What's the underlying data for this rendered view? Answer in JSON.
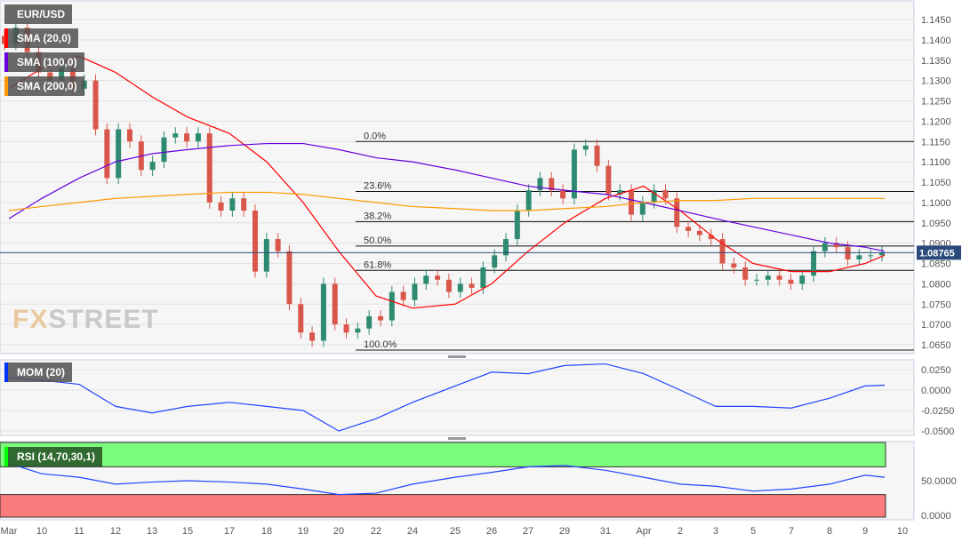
{
  "legend": [
    {
      "label": "EUR/USD",
      "color": "#555555"
    },
    {
      "label": "SMA (20,0)",
      "color": "#ff0000"
    },
    {
      "label": "SMA (100,0)",
      "color": "#6600dd"
    },
    {
      "label": "SMA (200,0)",
      "color": "#ff9900"
    }
  ],
  "watermark": {
    "a": "FX",
    "b": "STREET"
  },
  "chart_data": [
    {
      "type": "candlestick",
      "title": "EUR/USD",
      "ylim": [
        1.0625,
        1.1475
      ],
      "yticks": [
        "1.1450",
        "1.1400",
        "1.1350",
        "1.1300",
        "1.1250",
        "1.1200",
        "1.1150",
        "1.1100",
        "1.1050",
        "1.1000",
        "1.0950",
        "1.0900",
        "1.0850",
        "1.0800",
        "1.0750",
        "1.0700",
        "1.0650"
      ],
      "xticks": [
        "Mar",
        "10",
        "11",
        "12",
        "13",
        "15",
        "17",
        "18",
        "19",
        "20",
        "22",
        "24",
        "25",
        "26",
        "27",
        "29",
        "31",
        "Apr",
        "2",
        "3",
        "5",
        "7",
        "8",
        "9",
        "10"
      ],
      "current_price": "1.08765",
      "closes": [
        1.139,
        1.143,
        1.137,
        1.132,
        1.13,
        1.133,
        1.128,
        1.13,
        1.118,
        1.106,
        1.118,
        1.115,
        1.108,
        1.11,
        1.116,
        1.117,
        1.115,
        1.117,
        1.1,
        1.098,
        1.101,
        1.098,
        1.083,
        1.091,
        1.088,
        1.075,
        1.068,
        1.066,
        1.08,
        1.07,
        1.068,
        1.069,
        1.072,
        1.071,
        1.078,
        1.076,
        1.08,
        1.082,
        1.081,
        1.078,
        1.08,
        1.079,
        1.084,
        1.087,
        1.091,
        1.098,
        1.103,
        1.106,
        1.103,
        1.101,
        1.113,
        1.114,
        1.109,
        1.102,
        1.103,
        1.097,
        1.1,
        1.103,
        1.101,
        1.094,
        1.093,
        1.092,
        1.091,
        1.085,
        1.084,
        1.081,
        1.081,
        1.082,
        1.081,
        1.08,
        1.082,
        1.088,
        1.09,
        1.089,
        1.086,
        1.087,
        1.087,
        1.0877
      ],
      "series": [
        {
          "name": "SMA (20,0)",
          "color": "#ff0000",
          "values": [
            1.128,
            1.133,
            1.136,
            1.132,
            1.126,
            1.121,
            1.117,
            1.11,
            1.1,
            1.088,
            1.077,
            1.074,
            1.075,
            1.08,
            1.088,
            1.095,
            1.101,
            1.104,
            1.098,
            1.091,
            1.085,
            1.083,
            1.083,
            1.085,
            1.087
          ]
        },
        {
          "name": "SMA (100,0)",
          "color": "#6600dd",
          "values": [
            1.096,
            1.101,
            1.106,
            1.11,
            1.112,
            1.113,
            1.114,
            1.1145,
            1.1145,
            1.113,
            1.111,
            1.11,
            1.108,
            1.106,
            1.104,
            1.103,
            1.102,
            1.1,
            1.098,
            1.096,
            1.094,
            1.092,
            1.09,
            1.089,
            1.088
          ]
        },
        {
          "name": "SMA (200,0)",
          "color": "#ff9900",
          "values": [
            1.098,
            1.099,
            1.1,
            1.101,
            1.1015,
            1.102,
            1.1025,
            1.1025,
            1.102,
            1.101,
            1.1,
            1.099,
            1.0985,
            1.098,
            1.098,
            1.0985,
            1.099,
            1.1,
            1.1005,
            1.1005,
            1.101,
            1.101,
            1.101,
            1.101,
            1.101
          ]
        }
      ],
      "fibonacci": [
        {
          "label": "0.0%",
          "value": 1.115
        },
        {
          "label": "23.6%",
          "value": 1.1027
        },
        {
          "label": "38.2%",
          "value": 1.0953
        },
        {
          "label": "50.0%",
          "value": 1.0893
        },
        {
          "label": "61.8%",
          "value": 1.0833
        },
        {
          "label": "100.0%",
          "value": 1.0637
        }
      ]
    },
    {
      "type": "line",
      "title": "MOM (20)",
      "color": "#2244ff",
      "ylim": [
        -0.055,
        0.035
      ],
      "yticks": [
        "0.0250",
        "0.0000",
        "-0.0250",
        "-0.0500"
      ],
      "values": [
        0.015,
        0.012,
        0.007,
        -0.02,
        -0.028,
        -0.02,
        -0.015,
        -0.02,
        -0.025,
        -0.05,
        -0.035,
        -0.015,
        0.005,
        0.022,
        0.02,
        0.03,
        0.032,
        0.02,
        0,
        -0.02,
        -0.02,
        -0.022,
        -0.01,
        0.005,
        0.006
      ]
    },
    {
      "type": "line",
      "title": "RSI (14,70,30,1)",
      "color": "#2244ff",
      "ylim": [
        0,
        100
      ],
      "yticks": [
        "50.0000",
        "0.0000"
      ],
      "overbought": 70,
      "oversold": 30,
      "values": [
        75,
        60,
        55,
        45,
        48,
        50,
        48,
        45,
        38,
        30,
        32,
        45,
        55,
        62,
        70,
        72,
        65,
        55,
        45,
        42,
        35,
        38,
        45,
        58,
        55
      ]
    }
  ]
}
